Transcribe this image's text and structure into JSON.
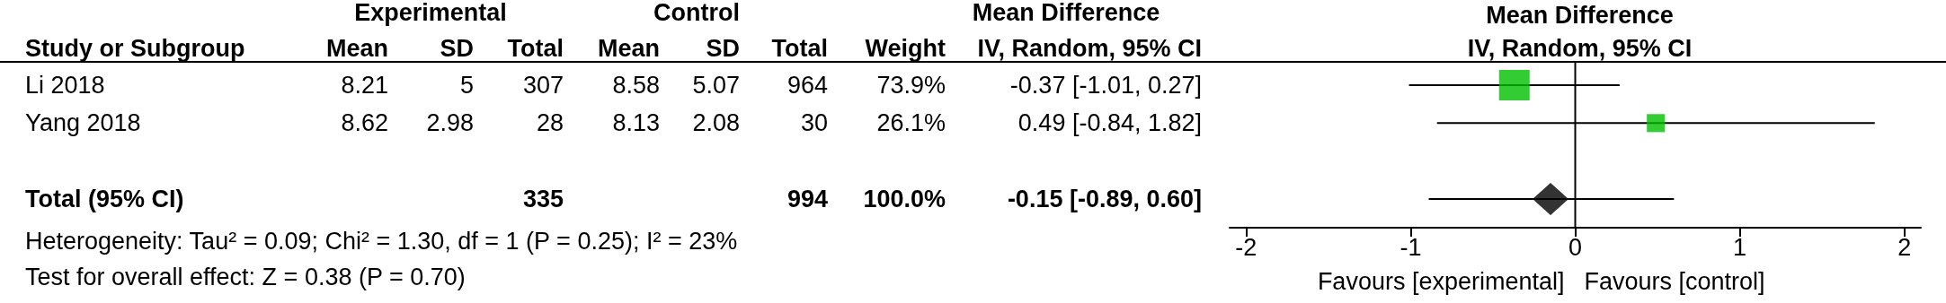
{
  "chart_data": [
    {
      "type": "other",
      "ylabel": "Study or Subgroup",
      "categories": [
        "Li 2018",
        "Yang 2018",
        null,
        "Total (95% CI)"
      ],
      "data_labels": true,
      "series": [
        {
          "name": "Mean",
          "values": [
            8.21,
            8.62,
            null,
            null
          ]
        },
        {
          "name": "SD",
          "values": [
            5,
            2.98,
            null,
            null
          ]
        },
        {
          "name": "Total",
          "values": [
            307,
            28,
            null,
            335
          ]
        },
        {
          "name": "Mean",
          "values": [
            8.58,
            8.13,
            null,
            null
          ]
        },
        {
          "name": "SD",
          "values": [
            5.07,
            2.08,
            null,
            null
          ]
        },
        {
          "name": "Total",
          "values": [
            964,
            30,
            null,
            994
          ]
        },
        {
          "name": "Weight",
          "values": [
            73.9,
            26.1,
            null,
            100.0
          ],
          "value_labels": [
            "73.9%",
            "26.1%",
            null,
            "100.0%"
          ]
        },
        {
          "name": "IV, Random, 95% CI",
          "values": [
            -0.37,
            0.49,
            null,
            -0.15
          ],
          "value_labels": [
            "-0.37 [-1.01, 0.27]",
            "0.49 [-0.84, 1.82]",
            null,
            "-0.15 [-0.89, 0.60]"
          ]
        }
      ],
      "annotations": [
        "Experimental",
        "Control",
        "Mean Difference",
        "Heterogeneity: Tau² = 0.09; Chi² = 1.30, df = 1 (P = 0.25); I² = 23%",
        "Test for overall effect: Z = 0.38 (P = 0.70)"
      ]
    },
    {
      "type": "scatter",
      "orientation": "horizontal",
      "title": "Mean Difference",
      "subtitle": "IV, Random, 95% CI",
      "categories": [
        null,
        null,
        null,
        null
      ],
      "xlim": [
        -2.1,
        2.1
      ],
      "xticks": [
        -2,
        -1,
        0,
        1,
        2
      ],
      "grid": false,
      "series": [
        {
          "type": "scatter",
          "marker": "square",
          "color": "#00c000",
          "values": [
            -0.37,
            0.49,
            null,
            null
          ],
          "errors": [
            [
              -1.01,
              0.27
            ],
            [
              -0.84,
              1.82
            ],
            null,
            null
          ],
          "sizes": [
            1,
            0.35,
            null,
            null
          ]
        },
        {
          "type": "scatter",
          "marker": "diamond",
          "color": "#000000",
          "values": [
            null,
            null,
            null,
            -0.15
          ],
          "errors": [
            null,
            null,
            null,
            [
              -0.89,
              0.6
            ]
          ]
        }
      ],
      "ref_lines": [
        {
          "axis": "x",
          "value": 0,
          "color": "#000000"
        }
      ],
      "annotations": [
        "Favours [experimental]",
        "Favours [control]"
      ]
    }
  ]
}
